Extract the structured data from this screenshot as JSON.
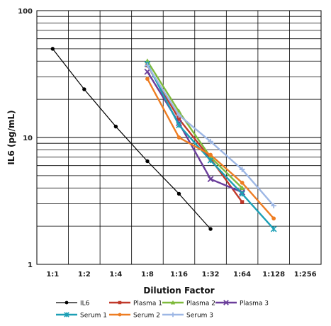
{
  "chart_data": {
    "type": "line",
    "title": "",
    "xlabel": "Dilution Factor",
    "ylabel": "IL6 (pg/mL)",
    "y_scale": "log",
    "ylim": [
      1,
      100
    ],
    "y_tick_labels": [
      "1",
      "10",
      "100"
    ],
    "categories": [
      "1:1",
      "1:2",
      "1:4",
      "1:8",
      "1:16",
      "1:32",
      "1:64",
      "1:128",
      "1:256"
    ],
    "grid": true,
    "legend_position": "bottom",
    "series": [
      {
        "name": "IL6",
        "color": "#000000",
        "marker": "circle",
        "values": [
          50,
          24,
          12.2,
          6.5,
          3.6,
          1.9,
          null,
          null,
          null
        ]
      },
      {
        "name": "Plasma 1",
        "color": "#c0392b",
        "marker": "square",
        "values": [
          null,
          null,
          null,
          37,
          14,
          6.8,
          3.1,
          null,
          null
        ]
      },
      {
        "name": "Plasma 2",
        "color": "#7fba3c",
        "marker": "triangle",
        "values": [
          null,
          null,
          null,
          40,
          16,
          7.0,
          4.0,
          null,
          null
        ]
      },
      {
        "name": "Plasma 3",
        "color": "#6a3d9a",
        "marker": "x",
        "values": [
          null,
          null,
          null,
          33,
          13,
          4.7,
          3.7,
          null,
          null
        ]
      },
      {
        "name": "Serum 1",
        "color": "#1c9fb5",
        "marker": "star",
        "values": [
          null,
          null,
          null,
          38,
          12.5,
          6.6,
          3.6,
          1.9,
          null
        ]
      },
      {
        "name": "Serum 2",
        "color": "#ee7d22",
        "marker": "circle",
        "values": [
          null,
          null,
          null,
          29,
          10,
          7.3,
          4.4,
          2.3,
          null
        ]
      },
      {
        "name": "Serum 3",
        "color": "#9db7e5",
        "marker": "cross",
        "values": [
          null,
          null,
          null,
          37,
          15,
          9.3,
          5.6,
          2.9,
          null
        ]
      }
    ]
  }
}
